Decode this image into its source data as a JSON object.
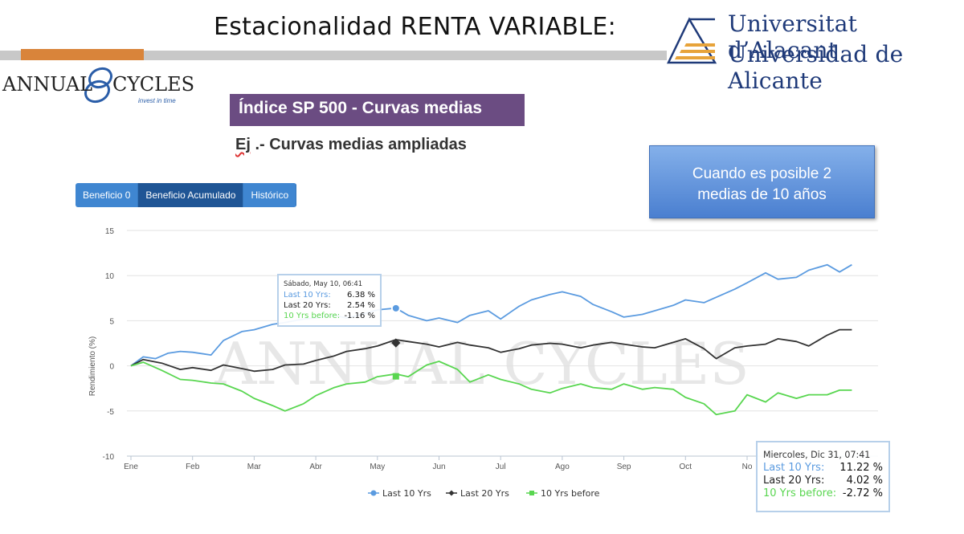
{
  "slide": {
    "title": "Estacionalidad RENTA VARIABLE:"
  },
  "university": {
    "line1": "Universitat d’Alacant",
    "line2": "Universidad de Alicante"
  },
  "brand": {
    "name_left": "ANNUAL",
    "name_right": "CYCLES",
    "tagline": "invest in time",
    "watermark": "ANNUAL CYCLES"
  },
  "section": {
    "heading": "Índice SP 500 - Curvas medias",
    "subtitle_prefix": "Ej",
    "subtitle_rest": " .- Curvas medias ampliadas"
  },
  "callout": {
    "line1": "Cuando es posible 2",
    "line2": "medias de 10 años"
  },
  "tabs": [
    {
      "label": "Beneficio 0",
      "active": false
    },
    {
      "label": "Beneficio Acumulado",
      "active": true
    },
    {
      "label": "Histórico",
      "active": false
    }
  ],
  "tooltip_may": {
    "date": "Sábado, May 10, 06:41",
    "rows": [
      {
        "label": "Last 10 Yrs:",
        "value": "6.38 %"
      },
      {
        "label": "Last 20 Yrs:",
        "value": "2.54 %"
      },
      {
        "label": "10 Yrs before:",
        "value": "-1.16 %"
      }
    ]
  },
  "tooltip_dec": {
    "date": "Miercoles, Dic 31, 07:41",
    "rows": [
      {
        "label": "Last 10 Yrs:",
        "value": "11.22 %"
      },
      {
        "label": "Last 20 Yrs:",
        "value": "4.02 %"
      },
      {
        "label": "10 Yrs before:",
        "value": "-2.72 %"
      }
    ]
  },
  "colors": {
    "last10": "#5b9be0",
    "last20": "#333333",
    "before": "#59d650",
    "purple": "#6b4c82",
    "tab": "#3f86d1",
    "tab_active": "#1f5595"
  },
  "chart_data": {
    "type": "line",
    "ylabel": "Rendimiento (%)",
    "ylim": [
      -10,
      15
    ],
    "yticks": [
      -10,
      -5,
      0,
      5,
      10,
      15
    ],
    "categories": [
      "Ene",
      "Feb",
      "Mar",
      "Abr",
      "May",
      "Jun",
      "Jul",
      "Ago",
      "Sep",
      "Oct",
      "No"
    ],
    "grid": "horizontal",
    "legend_position": "bottom",
    "series": [
      {
        "name": "Last 10 Yrs",
        "marker": "circle",
        "x": [
          0,
          0.2,
          0.4,
          0.6,
          0.8,
          1.0,
          1.3,
          1.5,
          1.8,
          2.0,
          2.3,
          2.5,
          2.8,
          3.0,
          3.3,
          3.5,
          3.8,
          4.0,
          4.3,
          4.5,
          4.8,
          5.0,
          5.3,
          5.5,
          5.8,
          6.0,
          6.3,
          6.5,
          6.8,
          7.0,
          7.3,
          7.5,
          7.8,
          8.0,
          8.3,
          8.5,
          8.8,
          9.0,
          9.3,
          9.5,
          9.8,
          10.0,
          10.3,
          10.5,
          10.8,
          11.0,
          11.3,
          11.5,
          11.7
        ],
        "values": [
          0,
          1.0,
          0.8,
          1.4,
          1.6,
          1.5,
          1.2,
          2.8,
          3.8,
          4.0,
          4.6,
          4.8,
          5.2,
          5.3,
          5.6,
          5.3,
          5.8,
          6.2,
          6.4,
          5.6,
          5.0,
          5.3,
          4.8,
          5.6,
          6.1,
          5.2,
          6.6,
          7.3,
          7.9,
          8.2,
          7.7,
          6.8,
          6.0,
          5.4,
          5.7,
          6.1,
          6.7,
          7.3,
          7.0,
          7.6,
          8.5,
          9.2,
          10.3,
          9.6,
          9.8,
          10.6,
          11.2,
          10.4,
          11.2
        ]
      },
      {
        "name": "Last 20 Yrs",
        "marker": "diamond",
        "x": [
          0,
          0.2,
          0.5,
          0.8,
          1.0,
          1.3,
          1.5,
          1.8,
          2.0,
          2.3,
          2.5,
          2.8,
          3.0,
          3.3,
          3.5,
          3.8,
          4.0,
          4.3,
          4.5,
          4.8,
          5.0,
          5.3,
          5.5,
          5.8,
          6.0,
          6.3,
          6.5,
          6.8,
          7.0,
          7.3,
          7.5,
          7.8,
          8.0,
          8.3,
          8.5,
          8.8,
          9.0,
          9.3,
          9.5,
          9.8,
          10.0,
          10.3,
          10.5,
          10.8,
          11.0,
          11.3,
          11.5,
          11.7
        ],
        "values": [
          0,
          0.7,
          0.3,
          -0.4,
          -0.2,
          -0.5,
          0.1,
          -0.3,
          -0.6,
          -0.4,
          0.1,
          0.2,
          0.6,
          1.1,
          1.6,
          1.9,
          2.2,
          2.9,
          2.7,
          2.4,
          2.1,
          2.6,
          2.3,
          2.0,
          1.5,
          1.9,
          2.3,
          2.5,
          2.4,
          2.0,
          2.3,
          2.6,
          2.4,
          2.1,
          2.0,
          2.6,
          3.0,
          1.9,
          0.8,
          2.0,
          2.2,
          2.4,
          3.0,
          2.7,
          2.2,
          3.4,
          4.0,
          4.0
        ]
      },
      {
        "name": "10 Yrs before",
        "marker": "square",
        "x": [
          0,
          0.2,
          0.5,
          0.8,
          1.0,
          1.3,
          1.5,
          1.8,
          2.0,
          2.3,
          2.5,
          2.8,
          3.0,
          3.3,
          3.5,
          3.8,
          4.0,
          4.3,
          4.5,
          4.8,
          5.0,
          5.3,
          5.5,
          5.8,
          6.0,
          6.3,
          6.5,
          6.8,
          7.0,
          7.3,
          7.5,
          7.8,
          8.0,
          8.3,
          8.5,
          8.8,
          9.0,
          9.3,
          9.5,
          9.8,
          10.0,
          10.3,
          10.5,
          10.8,
          11.0,
          11.3,
          11.5,
          11.7
        ],
        "values": [
          0,
          0.4,
          -0.5,
          -1.5,
          -1.6,
          -1.9,
          -2.0,
          -2.8,
          -3.6,
          -4.4,
          -5.0,
          -4.2,
          -3.3,
          -2.4,
          -2.0,
          -1.8,
          -1.2,
          -0.9,
          -1.2,
          0.1,
          0.5,
          -0.4,
          -1.8,
          -1.0,
          -1.5,
          -2.0,
          -2.6,
          -3.0,
          -2.5,
          -2.0,
          -2.4,
          -2.6,
          -2.0,
          -2.6,
          -2.4,
          -2.6,
          -3.5,
          -4.2,
          -5.4,
          -5.0,
          -3.2,
          -4.0,
          -3.0,
          -3.6,
          -3.2,
          -3.2,
          -2.7,
          -2.7
        ]
      }
    ]
  }
}
